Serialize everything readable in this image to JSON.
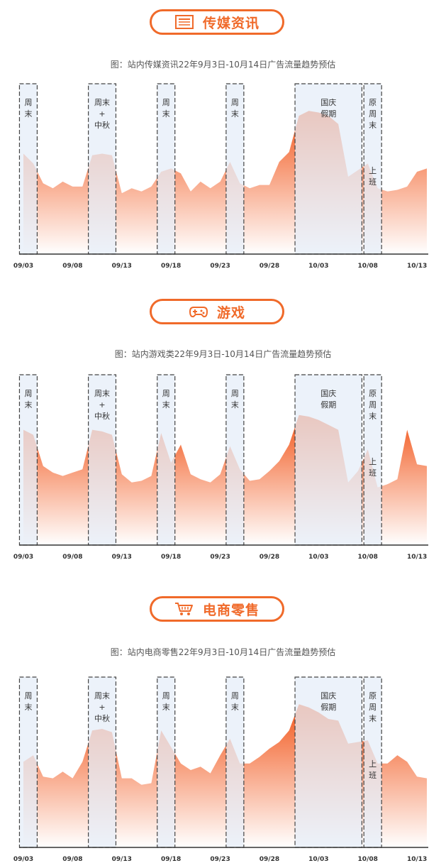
{
  "chart_data": [
    {
      "type": "area",
      "header": "传媒资讯",
      "header_icon": "newspaper-icon",
      "title": "图：站内传媒资讯22年9月3日-10月14日广告流量趋势预估",
      "x": [
        "09/03",
        "09/04",
        "09/05",
        "09/06",
        "09/07",
        "09/08",
        "09/09",
        "09/10",
        "09/11",
        "09/12",
        "09/13",
        "09/14",
        "09/15",
        "09/16",
        "09/17",
        "09/18",
        "09/19",
        "09/20",
        "09/21",
        "09/22",
        "09/23",
        "09/24",
        "09/25",
        "09/26",
        "09/27",
        "09/28",
        "09/29",
        "09/30",
        "10/01",
        "10/02",
        "10/03",
        "10/04",
        "10/05",
        "10/06",
        "10/07",
        "10/08",
        "10/09",
        "10/10",
        "10/11",
        "10/12",
        "10/13",
        "10/14"
      ],
      "tick_labels": [
        "09/03",
        "09/08",
        "09/13",
        "09/18",
        "09/23",
        "09/28",
        "10/03",
        "10/08",
        "10/13"
      ],
      "values": [
        61,
        55,
        43,
        40,
        44,
        41,
        41,
        60,
        61,
        60,
        37,
        40,
        38,
        41,
        50,
        52,
        49,
        38,
        44,
        40,
        44,
        56,
        43,
        40,
        42,
        42,
        56,
        62,
        84,
        87,
        86,
        84,
        79,
        47,
        51,
        55,
        40,
        38,
        39,
        41,
        50,
        52
      ],
      "ylim": [
        0,
        100
      ],
      "shaded_periods": [
        {
          "start": "09/03",
          "end": "09/04",
          "label": "周\n末"
        },
        {
          "start": "09/10",
          "end": "09/12",
          "label": "周末\n+\n中秋"
        },
        {
          "start": "09/17",
          "end": "09/18",
          "label": "周\n末"
        },
        {
          "start": "09/24",
          "end": "09/25",
          "label": "周\n末"
        },
        {
          "start": "10/01",
          "end": "10/07",
          "label": "国庆\n假期"
        },
        {
          "start": "10/08",
          "end": "10/09",
          "label": "原\n周\n末\n\n\n\n上\n班"
        }
      ],
      "colors": {
        "top": "#f2571c",
        "bottom": "#ffffff",
        "band_fill": "#e6eef8",
        "band_stroke": "#444444"
      }
    },
    {
      "type": "area",
      "header": "游戏",
      "header_icon": "gamepad-icon",
      "title": "图：站内游戏类22年9月3日-10月14日广告流量趋势预估",
      "x": [
        "09/03",
        "09/04",
        "09/05",
        "09/06",
        "09/07",
        "09/08",
        "09/09",
        "09/10",
        "09/11",
        "09/12",
        "09/13",
        "09/14",
        "09/15",
        "09/16",
        "09/17",
        "09/18",
        "09/19",
        "09/20",
        "09/21",
        "09/22",
        "09/23",
        "09/24",
        "09/25",
        "09/26",
        "09/27",
        "09/28",
        "09/29",
        "09/30",
        "10/01",
        "10/02",
        "10/03",
        "10/04",
        "10/05",
        "10/06",
        "10/07",
        "10/08",
        "10/09",
        "10/10",
        "10/11",
        "10/12",
        "10/13",
        "10/14"
      ],
      "tick_labels": [
        "09/03",
        "09/08",
        "09/13",
        "09/18",
        "09/23",
        "09/28",
        "10/03",
        "10/08",
        "10/13"
      ],
      "values": [
        70,
        67,
        48,
        44,
        42,
        44,
        46,
        70,
        69,
        67,
        43,
        38,
        39,
        42,
        68,
        50,
        61,
        43,
        40,
        38,
        43,
        60,
        46,
        39,
        40,
        45,
        51,
        61,
        79,
        78,
        76,
        73,
        70,
        38,
        45,
        58,
        35,
        37,
        40,
        70,
        49,
        48
      ],
      "ylim": [
        0,
        100
      ],
      "shaded_periods": [
        {
          "start": "09/03",
          "end": "09/04",
          "label": "周\n末"
        },
        {
          "start": "09/10",
          "end": "09/12",
          "label": "周末\n+\n中秋"
        },
        {
          "start": "09/17",
          "end": "09/18",
          "label": "周\n末"
        },
        {
          "start": "09/24",
          "end": "09/25",
          "label": "周\n末"
        },
        {
          "start": "10/01",
          "end": "10/07",
          "label": "国庆\n假期"
        },
        {
          "start": "10/08",
          "end": "10/09",
          "label": "原\n周\n末\n\n\n\n上\n班"
        }
      ],
      "colors": {
        "top": "#f2571c",
        "bottom": "#ffffff",
        "band_fill": "#e6eef8",
        "band_stroke": "#444444"
      }
    },
    {
      "type": "area",
      "header": "电商零售",
      "header_icon": "shopping-cart-icon",
      "title": "图：站内电商零售22年9月3日-10月14日广告流量趋势预估",
      "x": [
        "09/03",
        "09/04",
        "09/05",
        "09/06",
        "09/07",
        "09/08",
        "09/09",
        "09/10",
        "09/11",
        "09/12",
        "09/13",
        "09/14",
        "09/15",
        "09/16",
        "09/17",
        "09/18",
        "09/19",
        "09/20",
        "09/21",
        "09/22",
        "09/23",
        "09/24",
        "09/25",
        "09/26",
        "09/27",
        "09/28",
        "09/29",
        "09/30",
        "10/01",
        "10/02",
        "10/03",
        "10/04",
        "10/05",
        "10/06",
        "10/07",
        "10/08",
        "10/09",
        "10/10",
        "10/11",
        "10/12",
        "10/13",
        "10/14"
      ],
      "tick_labels": [
        "09/03",
        "09/08",
        "09/13",
        "09/18",
        "09/23",
        "09/28",
        "10/03",
        "10/08",
        "10/13"
      ],
      "values": [
        52,
        56,
        43,
        42,
        46,
        42,
        52,
        71,
        72,
        70,
        42,
        42,
        38,
        39,
        71,
        61,
        51,
        47,
        49,
        45,
        56,
        66,
        51,
        51,
        55,
        60,
        64,
        71,
        87,
        85,
        82,
        78,
        77,
        63,
        64,
        65,
        51,
        51,
        56,
        52,
        43,
        42
      ],
      "ylim": [
        0,
        100
      ],
      "shaded_periods": [
        {
          "start": "09/03",
          "end": "09/04",
          "label": "周\n末"
        },
        {
          "start": "09/10",
          "end": "09/12",
          "label": "周末\n+\n中秋"
        },
        {
          "start": "09/17",
          "end": "09/18",
          "label": "周\n末"
        },
        {
          "start": "09/24",
          "end": "09/25",
          "label": "周\n末"
        },
        {
          "start": "10/01",
          "end": "10/07",
          "label": "国庆\n假期"
        },
        {
          "start": "10/08",
          "end": "10/09",
          "label": "原\n周\n末\n\n\n\n上\n班"
        }
      ],
      "colors": {
        "top": "#f2571c",
        "bottom": "#ffffff",
        "band_fill": "#e6eef8",
        "band_stroke": "#444444"
      }
    }
  ]
}
